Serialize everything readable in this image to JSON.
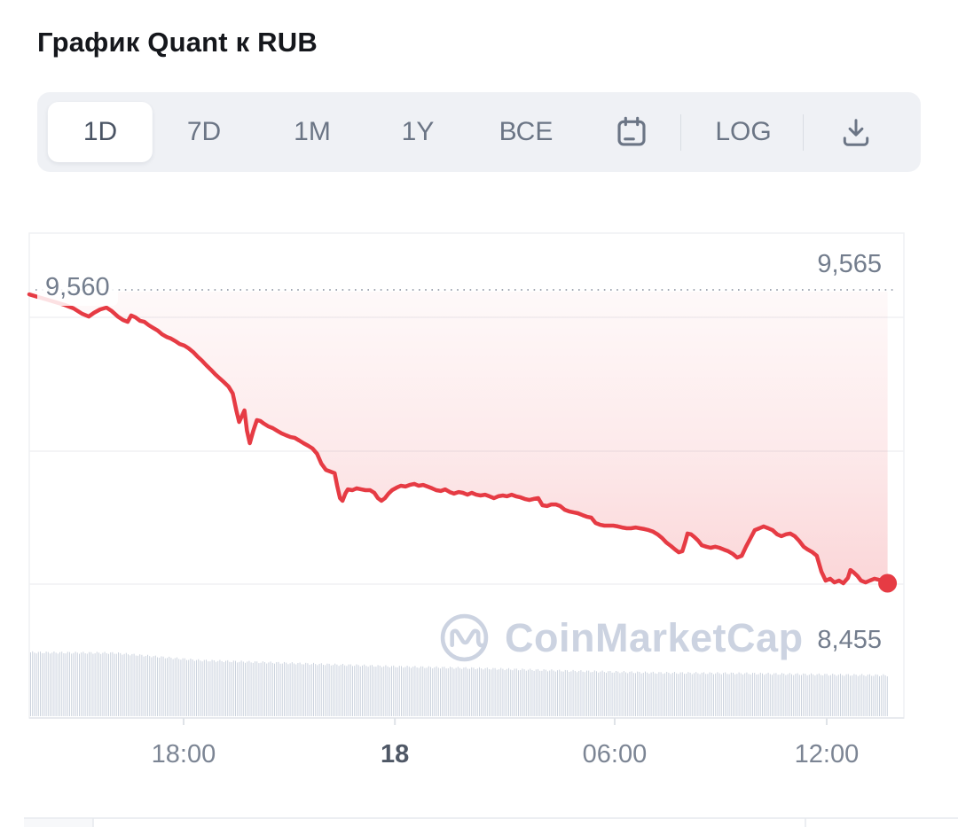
{
  "page": {
    "title": "График Quant к RUB"
  },
  "toolbar": {
    "ranges": [
      {
        "label": "1D",
        "selected": true
      },
      {
        "label": "7D",
        "selected": false
      },
      {
        "label": "1M",
        "selected": false
      },
      {
        "label": "1Y",
        "selected": false
      },
      {
        "label": "ВСЕ",
        "selected": false
      }
    ],
    "calendar_icon": "calendar-icon",
    "log_label": "LOG",
    "download_icon": "download-icon"
  },
  "chart": {
    "high_label": "9,565",
    "open_label": "9,560",
    "last_label": "8,455",
    "watermark": "CoinMarketCap",
    "colors": {
      "line_red": "#e63b44",
      "fill_red": "#ea3943",
      "label_gray": "#737d8d",
      "watermark_gray": "#ccd3e1",
      "volume_bar": "#ccd3de",
      "grid": "#f0f1f4",
      "dotted": "#a2a8b3"
    }
  },
  "chart_data": {
    "type": "line",
    "pair": "QNT/RUB",
    "selected_range": "1D",
    "title": "График Quant к RUB",
    "y_high": 9565,
    "y_open": 9560,
    "y_last": 8455,
    "x_span_hours": 24.25,
    "x_ticks": [
      {
        "label": "18:00",
        "h": 4.36,
        "bold": false
      },
      {
        "label": "18",
        "h": 10.33,
        "bold": true
      },
      {
        "label": "06:00",
        "h": 16.54,
        "bold": false
      },
      {
        "label": "12:00",
        "h": 22.53,
        "bold": false
      }
    ],
    "series_hours_price": [
      [
        0,
        9548
      ],
      [
        0.25,
        9538
      ],
      [
        0.5,
        9528
      ],
      [
        0.75,
        9518
      ],
      [
        1,
        9508
      ],
      [
        1.25,
        9495
      ],
      [
        1.5,
        9474
      ],
      [
        1.68,
        9464
      ],
      [
        1.83,
        9478
      ],
      [
        2,
        9491
      ],
      [
        2.18,
        9498
      ],
      [
        2.33,
        9485
      ],
      [
        2.5,
        9464
      ],
      [
        2.65,
        9451
      ],
      [
        2.78,
        9444
      ],
      [
        2.88,
        9468
      ],
      [
        3,
        9461
      ],
      [
        3.13,
        9448
      ],
      [
        3.25,
        9444
      ],
      [
        3.38,
        9431
      ],
      [
        3.5,
        9421
      ],
      [
        3.63,
        9411
      ],
      [
        3.75,
        9397
      ],
      [
        3.88,
        9387
      ],
      [
        4,
        9381
      ],
      [
        4.13,
        9371
      ],
      [
        4.25,
        9360
      ],
      [
        4.38,
        9354
      ],
      [
        4.5,
        9344
      ],
      [
        4.63,
        9330
      ],
      [
        4.75,
        9313
      ],
      [
        4.88,
        9297
      ],
      [
        5,
        9280
      ],
      [
        5.13,
        9263
      ],
      [
        5.25,
        9246
      ],
      [
        5.38,
        9230
      ],
      [
        5.5,
        9216
      ],
      [
        5.63,
        9199
      ],
      [
        5.75,
        9173
      ],
      [
        5.85,
        9109
      ],
      [
        5.93,
        9065
      ],
      [
        6,
        9085
      ],
      [
        6.08,
        9109
      ],
      [
        6.15,
        9032
      ],
      [
        6.23,
        8985
      ],
      [
        6.33,
        9032
      ],
      [
        6.43,
        9072
      ],
      [
        6.53,
        9069
      ],
      [
        6.63,
        9059
      ],
      [
        6.75,
        9049
      ],
      [
        6.88,
        9042
      ],
      [
        7,
        9032
      ],
      [
        7.13,
        9022
      ],
      [
        7.25,
        9015
      ],
      [
        7.38,
        9008
      ],
      [
        7.5,
        9005
      ],
      [
        7.63,
        8995
      ],
      [
        7.75,
        8985
      ],
      [
        7.88,
        8975
      ],
      [
        8,
        8965
      ],
      [
        8.13,
        8945
      ],
      [
        8.25,
        8908
      ],
      [
        8.38,
        8884
      ],
      [
        8.5,
        8878
      ],
      [
        8.63,
        8871
      ],
      [
        8.7,
        8824
      ],
      [
        8.78,
        8777
      ],
      [
        8.85,
        8767
      ],
      [
        8.93,
        8794
      ],
      [
        9,
        8810
      ],
      [
        9.13,
        8807
      ],
      [
        9.25,
        8814
      ],
      [
        9.38,
        8810
      ],
      [
        9.5,
        8807
      ],
      [
        9.63,
        8807
      ],
      [
        9.75,
        8797
      ],
      [
        9.85,
        8777
      ],
      [
        9.95,
        8767
      ],
      [
        10.05,
        8777
      ],
      [
        10.15,
        8794
      ],
      [
        10.25,
        8807
      ],
      [
        10.38,
        8817
      ],
      [
        10.5,
        8824
      ],
      [
        10.63,
        8821
      ],
      [
        10.75,
        8827
      ],
      [
        10.88,
        8831
      ],
      [
        11,
        8824
      ],
      [
        11.13,
        8827
      ],
      [
        11.25,
        8821
      ],
      [
        11.38,
        8814
      ],
      [
        11.5,
        8807
      ],
      [
        11.63,
        8804
      ],
      [
        11.75,
        8810
      ],
      [
        11.88,
        8800
      ],
      [
        12,
        8794
      ],
      [
        12.13,
        8800
      ],
      [
        12.25,
        8797
      ],
      [
        12.38,
        8790
      ],
      [
        12.5,
        8797
      ],
      [
        12.63,
        8790
      ],
      [
        12.75,
        8787
      ],
      [
        12.88,
        8790
      ],
      [
        13,
        8784
      ],
      [
        13.13,
        8777
      ],
      [
        13.25,
        8784
      ],
      [
        13.38,
        8787
      ],
      [
        13.5,
        8784
      ],
      [
        13.63,
        8790
      ],
      [
        13.75,
        8784
      ],
      [
        13.88,
        8780
      ],
      [
        14,
        8774
      ],
      [
        14.13,
        8770
      ],
      [
        14.25,
        8774
      ],
      [
        14.38,
        8777
      ],
      [
        14.5,
        8750
      ],
      [
        14.63,
        8747
      ],
      [
        14.75,
        8753
      ],
      [
        14.88,
        8753
      ],
      [
        15,
        8747
      ],
      [
        15.13,
        8733
      ],
      [
        15.25,
        8727
      ],
      [
        15.38,
        8723
      ],
      [
        15.5,
        8720
      ],
      [
        15.63,
        8713
      ],
      [
        15.75,
        8707
      ],
      [
        15.88,
        8703
      ],
      [
        16,
        8683
      ],
      [
        16.13,
        8676
      ],
      [
        16.25,
        8673
      ],
      [
        16.38,
        8673
      ],
      [
        16.5,
        8673
      ],
      [
        16.63,
        8670
      ],
      [
        16.75,
        8666
      ],
      [
        16.88,
        8663
      ],
      [
        17,
        8663
      ],
      [
        17.13,
        8666
      ],
      [
        17.25,
        8663
      ],
      [
        17.38,
        8660
      ],
      [
        17.5,
        8656
      ],
      [
        17.63,
        8650
      ],
      [
        17.75,
        8640
      ],
      [
        17.88,
        8626
      ],
      [
        18,
        8609
      ],
      [
        18.13,
        8596
      ],
      [
        18.25,
        8582
      ],
      [
        18.35,
        8572
      ],
      [
        18.45,
        8576
      ],
      [
        18.53,
        8609
      ],
      [
        18.6,
        8643
      ],
      [
        18.7,
        8640
      ],
      [
        18.8,
        8629
      ],
      [
        18.9,
        8616
      ],
      [
        19,
        8599
      ],
      [
        19.13,
        8593
      ],
      [
        19.25,
        8589
      ],
      [
        19.38,
        8593
      ],
      [
        19.5,
        8589
      ],
      [
        19.63,
        8582
      ],
      [
        19.75,
        8576
      ],
      [
        19.88,
        8566
      ],
      [
        20,
        8552
      ],
      [
        20.13,
        8559
      ],
      [
        20.25,
        8593
      ],
      [
        20.38,
        8626
      ],
      [
        20.5,
        8656
      ],
      [
        20.63,
        8663
      ],
      [
        20.75,
        8670
      ],
      [
        20.88,
        8663
      ],
      [
        21,
        8656
      ],
      [
        21.13,
        8640
      ],
      [
        21.25,
        8633
      ],
      [
        21.38,
        8640
      ],
      [
        21.5,
        8643
      ],
      [
        21.63,
        8633
      ],
      [
        21.75,
        8616
      ],
      [
        21.88,
        8593
      ],
      [
        22,
        8582
      ],
      [
        22.13,
        8572
      ],
      [
        22.25,
        8559
      ],
      [
        22.38,
        8499
      ],
      [
        22.5,
        8465
      ],
      [
        22.63,
        8472
      ],
      [
        22.75,
        8458
      ],
      [
        22.88,
        8465
      ],
      [
        23,
        8455
      ],
      [
        23.13,
        8475
      ],
      [
        23.2,
        8505
      ],
      [
        23.3,
        8495
      ],
      [
        23.4,
        8482
      ],
      [
        23.5,
        8465
      ],
      [
        23.63,
        8458
      ],
      [
        23.75,
        8465
      ],
      [
        23.88,
        8472
      ],
      [
        24,
        8468
      ],
      [
        24.13,
        8465
      ],
      [
        24.25,
        8455
      ]
    ],
    "volume_envelope_hours_frac": [
      [
        0,
        1.0
      ],
      [
        2.4,
        0.99
      ],
      [
        4.8,
        0.875
      ],
      [
        7.4,
        0.83
      ],
      [
        10.2,
        0.78
      ],
      [
        12.7,
        0.75
      ],
      [
        15.2,
        0.71
      ],
      [
        17.7,
        0.68
      ],
      [
        20.2,
        0.67
      ],
      [
        22.7,
        0.65
      ],
      [
        24.28,
        0.64
      ]
    ],
    "grid": true,
    "legend": false
  }
}
